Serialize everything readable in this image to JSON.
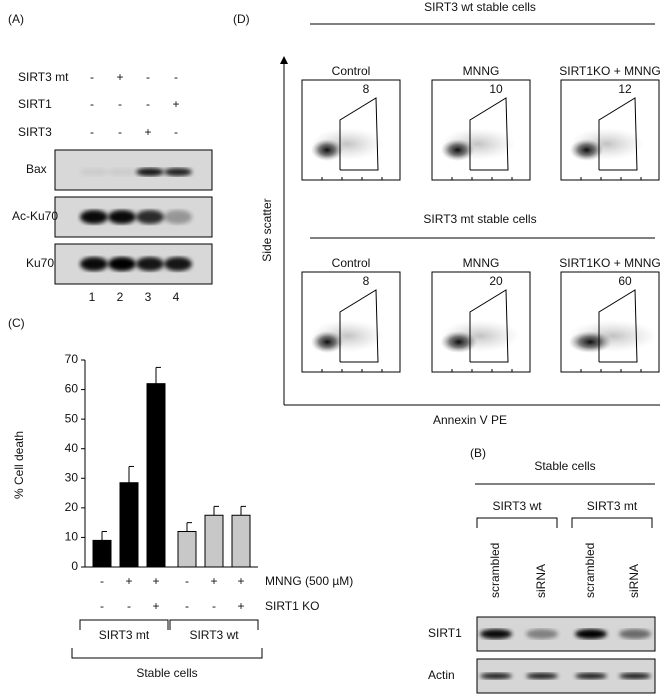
{
  "panels": {
    "a": "(A)",
    "b": "(B)",
    "c": "(C)",
    "d": "(D)"
  },
  "blot_a": {
    "rows": [
      {
        "label": "SIRT3 mt",
        "signs": [
          "-",
          "+",
          "-",
          "-"
        ]
      },
      {
        "label": "SIRT1",
        "signs": [
          "-",
          "-",
          "-",
          "+"
        ]
      },
      {
        "label": "SIRT3",
        "signs": [
          "-",
          "-",
          "+",
          "-"
        ]
      }
    ],
    "bands": [
      "Bax",
      "Ac-Ku70",
      "Ku70"
    ],
    "lanes": [
      "1",
      "2",
      "3",
      "4"
    ]
  },
  "chart_data": {
    "type": "bar",
    "ylabel": "% Cell death",
    "ylim": [
      0,
      70
    ],
    "yticks": [
      0,
      10,
      20,
      30,
      40,
      50,
      60,
      70
    ],
    "series": [
      {
        "name": "SIRT3 mt",
        "color": "#000000",
        "values": [
          9,
          28.5,
          62
        ],
        "errors": [
          3,
          5.5,
          5.5
        ]
      },
      {
        "name": "SIRT3 wt",
        "color": "#c8c8c8",
        "values": [
          12,
          17.5,
          17.5
        ],
        "errors": [
          3,
          3,
          3
        ]
      }
    ],
    "conditions": [
      {
        "label": "MNNG (500 µM)",
        "signs": [
          "-",
          "+",
          "+",
          "-",
          "+",
          "+"
        ]
      },
      {
        "label": "SIRT1 KO",
        "signs": [
          "-",
          "-",
          "+",
          "-",
          "-",
          "+"
        ]
      }
    ],
    "group_label": "Stable cells"
  },
  "flow": {
    "ylabel": "Side scatter",
    "xlabel": "Annexin V PE",
    "groups": [
      {
        "title": "SIRT3 wt stable cells",
        "plots": [
          {
            "label": "Control",
            "value": 8
          },
          {
            "label": "MNNG",
            "value": 10
          },
          {
            "label": "SIRT1KO + MNNG",
            "value": 12
          }
        ]
      },
      {
        "title": "SIRT3 mt stable cells",
        "plots": [
          {
            "label": "Control",
            "value": 8
          },
          {
            "label": "MNNG",
            "value": 20
          },
          {
            "label": "SIRT1KO + MNNG",
            "value": 60
          }
        ]
      }
    ]
  },
  "blot_b": {
    "title": "Stable cells",
    "groups": [
      "SIRT3 wt",
      "SIRT3 mt"
    ],
    "lanes": [
      "scrambled",
      "siRNA",
      "scrambled",
      "siRNA"
    ],
    "bands": [
      "SIRT1",
      "Actin"
    ]
  }
}
